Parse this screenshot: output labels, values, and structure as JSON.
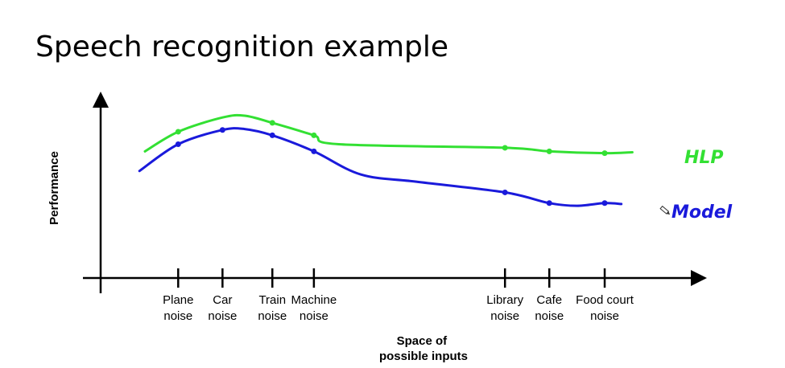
{
  "slide": {
    "title": "Speech recognition example"
  },
  "chart_data": {
    "type": "line",
    "title": "",
    "xlabel": "Space of possible inputs",
    "xlabel_lines": [
      "Space of",
      "possible inputs"
    ],
    "ylabel": "Performance",
    "categories": [
      "Plane noise",
      "Car noise",
      "Train noise",
      "Machine noise",
      "Library noise",
      "Cafe noise",
      "Food court noise"
    ],
    "category_lines": [
      [
        "Plane",
        "noise"
      ],
      [
        "Car",
        "noise"
      ],
      [
        "Train",
        "noise"
      ],
      [
        "Machine",
        "noise"
      ],
      [
        "Library",
        "noise"
      ],
      [
        "Cafe",
        "noise"
      ],
      [
        "Food court",
        "noise"
      ]
    ],
    "category_positions": [
      1.2,
      2.0,
      2.9,
      3.65,
      7.1,
      7.9,
      8.9
    ],
    "xlim": [
      -0.2,
      10.6
    ],
    "ylim": [
      0,
      10
    ],
    "series": [
      {
        "name": "HLP",
        "color": "#33e033",
        "curve": [
          [
            0.6,
            7.1
          ],
          [
            1.2,
            8.2
          ],
          [
            2.0,
            9.0
          ],
          [
            2.4,
            9.1
          ],
          [
            2.9,
            8.7
          ],
          [
            3.65,
            8.0
          ],
          [
            4.1,
            7.5
          ],
          [
            7.1,
            7.3
          ],
          [
            7.9,
            7.1
          ],
          [
            8.9,
            7.0
          ],
          [
            9.4,
            7.05
          ]
        ],
        "points": [
          [
            1.2,
            8.2
          ],
          [
            2.9,
            8.7
          ],
          [
            3.65,
            8.0
          ],
          [
            7.1,
            7.3
          ],
          [
            7.9,
            7.1
          ],
          [
            8.9,
            7.0
          ]
        ]
      },
      {
        "name": "Model",
        "color": "#1a1adb",
        "curve": [
          [
            0.5,
            6.0
          ],
          [
            1.2,
            7.5
          ],
          [
            2.0,
            8.3
          ],
          [
            2.4,
            8.35
          ],
          [
            2.9,
            8.0
          ],
          [
            3.65,
            7.1
          ],
          [
            4.5,
            5.8
          ],
          [
            5.5,
            5.4
          ],
          [
            7.1,
            4.8
          ],
          [
            7.9,
            4.2
          ],
          [
            8.4,
            4.05
          ],
          [
            8.9,
            4.2
          ],
          [
            9.2,
            4.15
          ]
        ],
        "points": [
          [
            1.2,
            7.5
          ],
          [
            2.0,
            8.3
          ],
          [
            2.9,
            8.0
          ],
          [
            3.65,
            7.1
          ],
          [
            7.1,
            4.8
          ],
          [
            7.9,
            4.2
          ],
          [
            8.9,
            4.2
          ]
        ]
      }
    ],
    "grid": false,
    "legend": "right"
  }
}
